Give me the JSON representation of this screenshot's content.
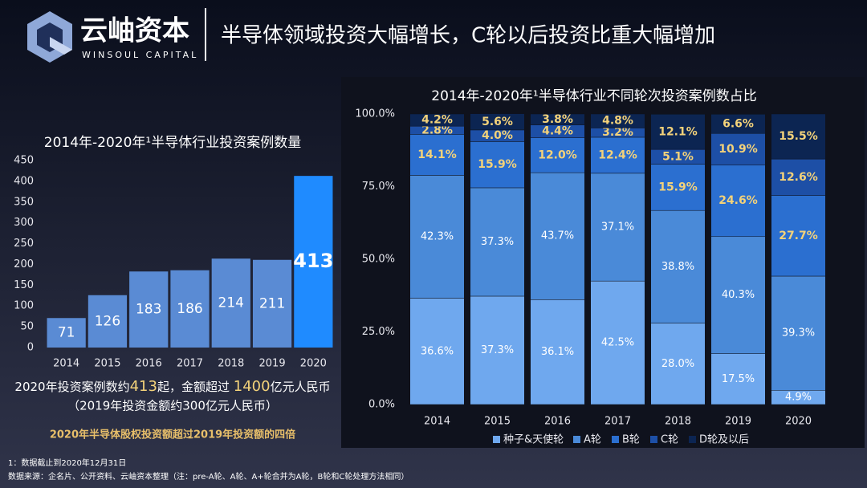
{
  "logo": {
    "name": "云岫资本",
    "subtitle": "WINSOUL CAPITAL"
  },
  "title": "半导体领域投资大幅增长，C轮以后投资比重大幅增加",
  "chart_data": [
    {
      "type": "bar",
      "title": "2014年-2020年¹半导体行业投资案例数量",
      "categories": [
        "2014",
        "2015",
        "2016",
        "2017",
        "2018",
        "2019",
        "2020"
      ],
      "values": [
        71,
        126,
        183,
        186,
        214,
        211,
        413
      ],
      "colors": [
        "#5a8bd4",
        "#5a8bd4",
        "#5a8bd4",
        "#5a8bd4",
        "#5a8bd4",
        "#5a8bd4",
        "#1f8bff"
      ],
      "ylim": [
        0,
        450
      ],
      "yticks": [
        0,
        50,
        100,
        150,
        200,
        250,
        300,
        350,
        400,
        450
      ],
      "grid": false
    },
    {
      "type": "stacked_bar",
      "title": "2014年-2020年¹半导体行业不同轮次投资案例数占比",
      "categories": [
        "2014",
        "2015",
        "2016",
        "2017",
        "2018",
        "2019",
        "2020"
      ],
      "series": [
        {
          "name": "种子&天使轮",
          "color": "#6fa8ee",
          "label_color": "#ffffff",
          "values": [
            36.6,
            37.3,
            36.1,
            42.5,
            28.0,
            17.5,
            4.9
          ],
          "value_labels": [
            "36.6%",
            "37.3%",
            "36.1%",
            "42.5%",
            "28.0%",
            "17.5%",
            "4.9%"
          ]
        },
        {
          "name": "A轮",
          "color": "#4a8ad8",
          "label_color": "#ffffff",
          "values": [
            42.3,
            37.3,
            43.7,
            37.1,
            38.8,
            40.3,
            39.3
          ],
          "value_labels": [
            "42.3%",
            "37.3%",
            "43.7%",
            "37.1%",
            "38.8%",
            "40.3%",
            "39.3%"
          ]
        },
        {
          "name": "B轮",
          "color": "#2b6fd0",
          "label_color": "#f3d27a",
          "values": [
            14.1,
            15.9,
            12.0,
            12.4,
            15.9,
            24.6,
            27.7
          ],
          "value_labels": [
            "14.1%",
            "15.9%",
            "12.0%",
            "12.4%",
            "15.9%",
            "24.6%",
            "27.7%"
          ]
        },
        {
          "name": "C轮",
          "color": "#1d4fa6",
          "label_color": "#f3d27a",
          "values": [
            2.8,
            4.0,
            4.4,
            3.2,
            5.1,
            10.9,
            12.6
          ],
          "value_labels": [
            "2.8%",
            "4.0%",
            "4.4%",
            "3.2%",
            "5.1%",
            "10.9%",
            "12.6%"
          ]
        },
        {
          "name": "D轮及以后",
          "color": "#0c2552",
          "label_color": "#f3d27a",
          "values": [
            4.2,
            5.6,
            3.8,
            4.8,
            12.1,
            6.6,
            15.5
          ],
          "value_labels": [
            "4.2%",
            "5.6%",
            "3.8%",
            "4.8%",
            "12.1%",
            "6.6%",
            "15.5%"
          ]
        }
      ],
      "ylim": [
        0,
        100
      ],
      "yticks": [
        {
          "value": 0,
          "label": "0.0%"
        },
        {
          "value": 25,
          "label": "25.0%"
        },
        {
          "value": 50,
          "label": "50.0%"
        },
        {
          "value": 75,
          "label": "75.0%"
        },
        {
          "value": 100,
          "label": "100.0%"
        }
      ],
      "legend": "bottom"
    }
  ],
  "notes": {
    "line1": [
      "2020年投资案例数约",
      "413",
      "起，金额超过 ",
      "1400",
      "亿元人民币"
    ],
    "line2": "（2019年投资金额约300亿元人民币）",
    "highlight": "2020年半导体股权投资额超过2019年投资额的四倍"
  },
  "footnotes": [
    "1：数据截止到2020年12月31日",
    "数据来源：企名片、公开资料、云岫资本整理（注：pre-A轮、A轮、A+轮合并为A轮，B轮和C轮处理方法相同）"
  ]
}
